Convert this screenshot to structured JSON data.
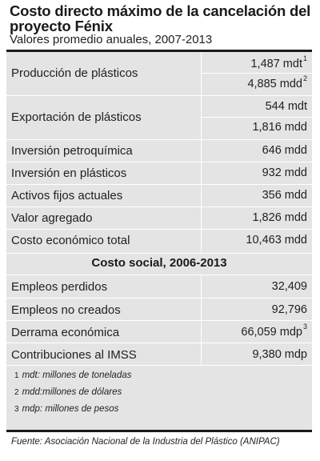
{
  "title": "Costo directo máximo de la cancelación del proyecto Fénix",
  "subtitle": "Valores promedio anuales, 2007-2013",
  "direct_rows": [
    {
      "label": "Producción de plásticos",
      "values": [
        {
          "text": "1,487 mdt",
          "note": "1"
        },
        {
          "text": "4,885 mdd",
          "note": "2"
        }
      ]
    },
    {
      "label": "Exportación de plásticos",
      "values": [
        {
          "text": "544 mdt",
          "note": ""
        },
        {
          "text": "1,816 mdd",
          "note": ""
        }
      ]
    },
    {
      "label": "Inversión petroquímica",
      "values": [
        {
          "text": "646 mdd",
          "note": ""
        }
      ]
    },
    {
      "label": "Inversión en plásticos",
      "values": [
        {
          "text": "932 mdd",
          "note": ""
        }
      ]
    },
    {
      "label": "Activos fijos actuales",
      "values": [
        {
          "text": "356 mdd",
          "note": ""
        }
      ]
    },
    {
      "label": "Valor agregado",
      "values": [
        {
          "text": "1,826 mdd",
          "note": ""
        }
      ]
    },
    {
      "label": "Costo económico total",
      "values": [
        {
          "text": "10,463 mdd",
          "note": ""
        }
      ]
    }
  ],
  "social_heading": "Costo social, 2006-2013",
  "social_rows": [
    {
      "label": "Empleos perdidos",
      "value": "32,409",
      "note": ""
    },
    {
      "label": "Empleos no creados",
      "value": "92,796",
      "note": ""
    },
    {
      "label": "Derrama económica",
      "value": "66,059 mdp",
      "note": "3"
    },
    {
      "label": "Contribuciones al IMSS",
      "value": "9,380 mdp",
      "note": ""
    }
  ],
  "footnotes": [
    {
      "num": "1",
      "text": "mdt: millones de toneladas"
    },
    {
      "num": "2",
      "text": "mdd:millones de dólares"
    },
    {
      "num": "3",
      "text": "mdp: millones de pesos"
    }
  ],
  "source": "Fuente: Asociación Nacional de la Industria del Plástico (ANIPAC)"
}
